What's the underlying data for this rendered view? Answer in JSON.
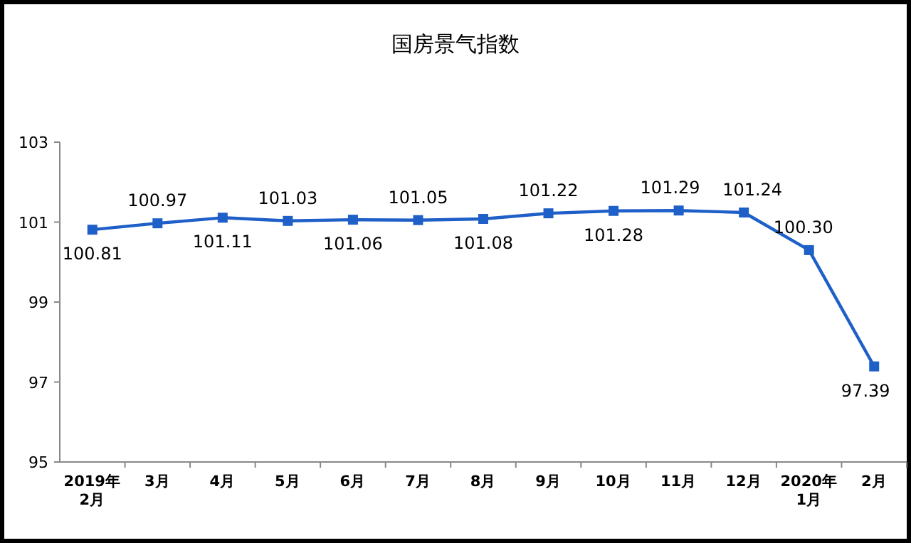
{
  "chart_data": {
    "type": "line",
    "title": "国房景气指数",
    "categories": [
      "2019年\n2月",
      "3月",
      "4月",
      "5月",
      "6月",
      "7月",
      "8月",
      "9月",
      "10月",
      "11月",
      "12月",
      "2020年\n1月",
      "2月"
    ],
    "series": [
      {
        "color": "#1f5fc8",
        "values": [
          100.81,
          100.97,
          101.11,
          101.03,
          101.06,
          101.05,
          101.08,
          101.22,
          101.28,
          101.29,
          101.24,
          100.3,
          97.39
        ],
        "value_labels": [
          "100.81",
          "100.97",
          "101.11",
          "101.03",
          "101.06",
          "101.05",
          "101.08",
          "101.22",
          "101.28",
          "101.29",
          "101.24",
          "100.30",
          "97.39"
        ]
      }
    ],
    "ylim": [
      95,
      103
    ],
    "yticks": [
      95,
      97,
      99,
      101,
      103
    ],
    "grid": false,
    "marker": "square",
    "line_style": "solid"
  }
}
